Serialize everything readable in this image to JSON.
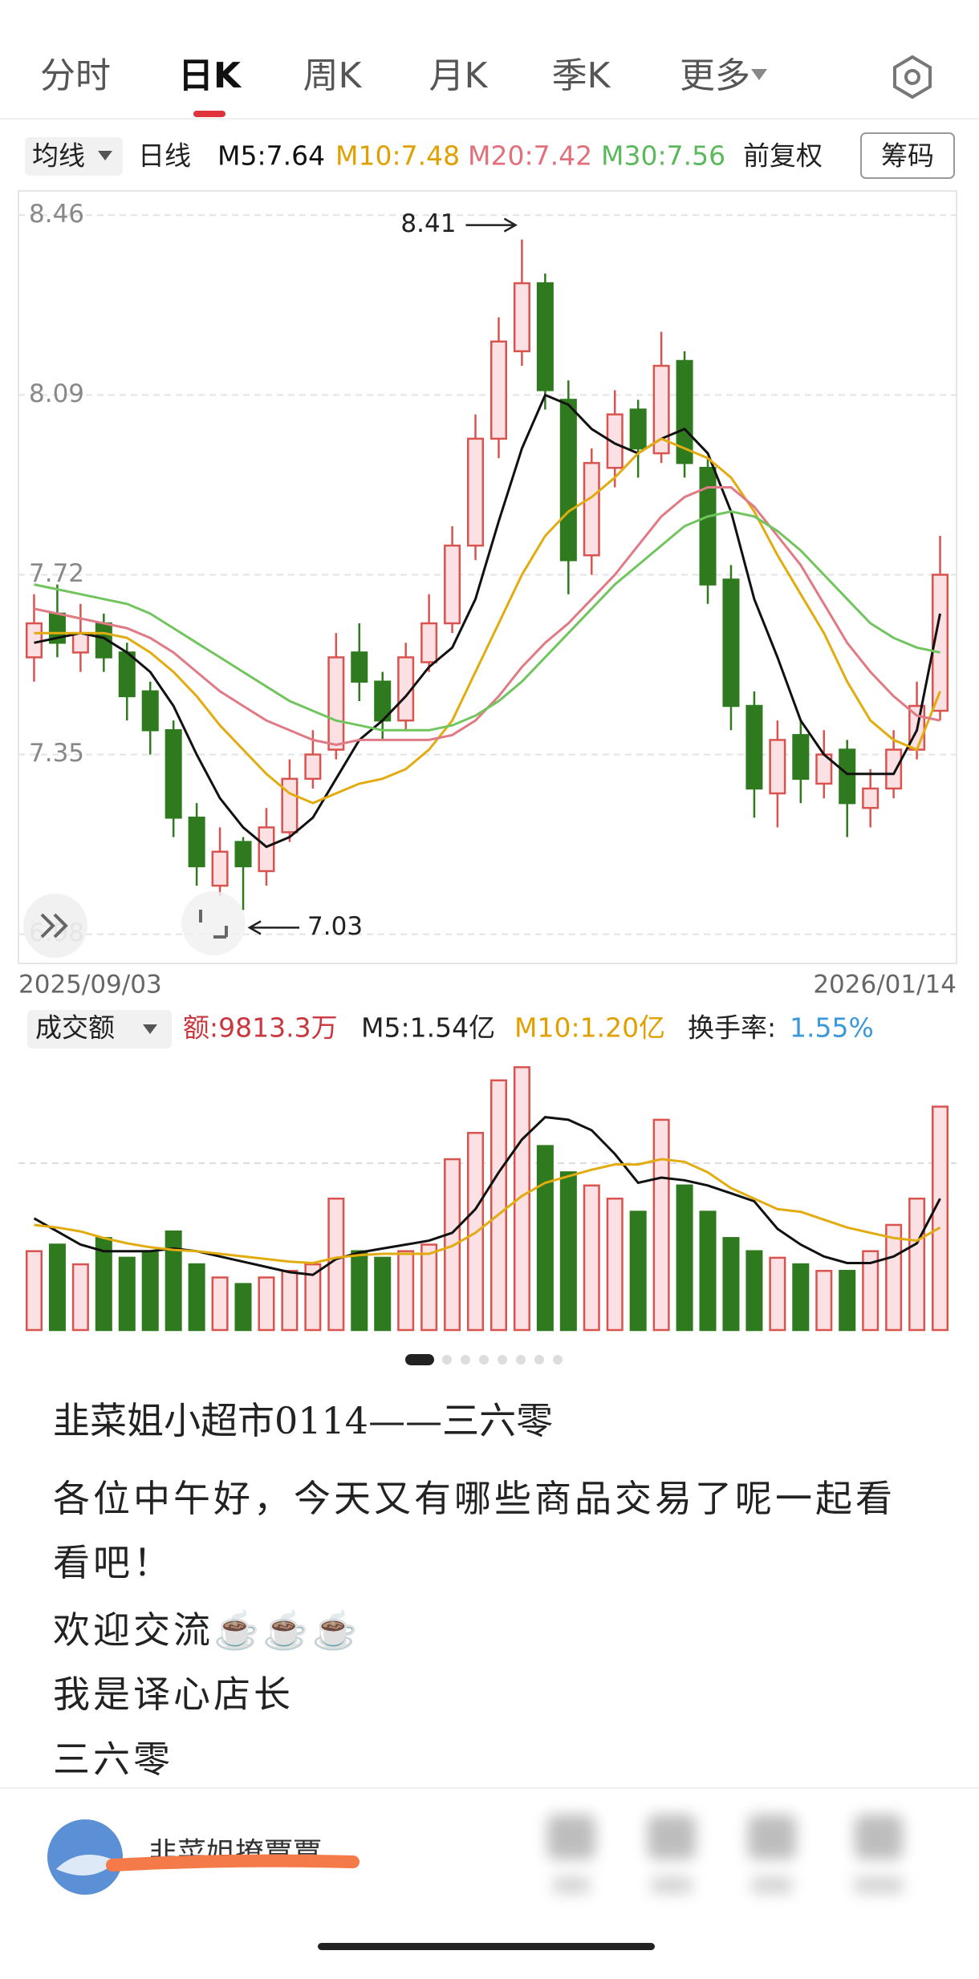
{
  "tabs": {
    "items": [
      "分时",
      "日K",
      "周K",
      "月K",
      "季K",
      "更多"
    ],
    "active": 1
  },
  "toolbar": {
    "ma_button": "均线",
    "period": "日线",
    "adjust": "前复权",
    "chips": "筹码"
  },
  "chart_data": [
    {
      "type": "candlestick",
      "ylim": [
        6.92,
        8.51
      ],
      "yticks": [
        8.46,
        8.09,
        7.72,
        7.35,
        6.98
      ],
      "grid": true,
      "date_range": [
        "2025/09/03",
        "2026/01/14"
      ],
      "up_color": "#d9534f",
      "up_fill": "#fbe1e3",
      "down_color": "#2f7a1e",
      "open": [
        7.55,
        7.64,
        7.56,
        7.62,
        7.56,
        7.48,
        7.4,
        7.22,
        7.08,
        7.17,
        7.11,
        7.19,
        7.3,
        7.36,
        7.56,
        7.5,
        7.42,
        7.54,
        7.62,
        7.78,
        8.0,
        8.18,
        8.32,
        8.08,
        7.76,
        7.94,
        8.06,
        7.97,
        8.16,
        7.94,
        7.71,
        7.45,
        7.27,
        7.39,
        7.29,
        7.36,
        7.24,
        7.28,
        7.36,
        7.44
      ],
      "close": [
        7.62,
        7.58,
        7.6,
        7.55,
        7.47,
        7.4,
        7.22,
        7.12,
        7.15,
        7.12,
        7.2,
        7.3,
        7.35,
        7.55,
        7.5,
        7.42,
        7.55,
        7.62,
        7.78,
        8.0,
        8.2,
        8.32,
        8.1,
        7.75,
        7.95,
        8.05,
        7.98,
        8.15,
        7.95,
        7.7,
        7.45,
        7.28,
        7.38,
        7.3,
        7.35,
        7.25,
        7.28,
        7.36,
        7.45,
        7.72
      ],
      "high": [
        7.68,
        7.7,
        7.66,
        7.64,
        7.58,
        7.5,
        7.42,
        7.25,
        7.2,
        7.18,
        7.24,
        7.34,
        7.4,
        7.6,
        7.62,
        7.52,
        7.58,
        7.68,
        7.82,
        8.05,
        8.25,
        8.41,
        8.34,
        8.12,
        7.98,
        8.1,
        8.08,
        8.22,
        8.18,
        7.96,
        7.74,
        7.48,
        7.42,
        7.42,
        7.4,
        7.38,
        7.32,
        7.4,
        7.5,
        7.8
      ],
      "low": [
        7.5,
        7.55,
        7.52,
        7.52,
        7.42,
        7.35,
        7.18,
        7.08,
        7.06,
        7.03,
        7.08,
        7.17,
        7.28,
        7.34,
        7.46,
        7.38,
        7.4,
        7.52,
        7.6,
        7.75,
        7.96,
        8.15,
        8.06,
        7.68,
        7.72,
        7.9,
        7.92,
        7.95,
        7.92,
        7.66,
        7.4,
        7.22,
        7.2,
        7.25,
        7.26,
        7.18,
        7.2,
        7.26,
        7.34,
        7.42
      ],
      "high_mark": 21,
      "low_mark": 9,
      "series": [
        {
          "label": "M5:7.64",
          "color": "#111111",
          "text_color": "#111111",
          "values": [
            7.58,
            7.59,
            7.6,
            7.59,
            7.56,
            7.52,
            7.45,
            7.35,
            7.26,
            7.2,
            7.16,
            7.18,
            7.22,
            7.3,
            7.38,
            7.42,
            7.47,
            7.53,
            7.57,
            7.67,
            7.83,
            7.98,
            8.09,
            8.07,
            8.02,
            7.99,
            7.97,
            8.0,
            8.02,
            7.97,
            7.85,
            7.67,
            7.55,
            7.42,
            7.35,
            7.31,
            7.31,
            7.31,
            7.4,
            7.64
          ]
        },
        {
          "label": "M10:7.48",
          "color": "#e2ac10",
          "text_color": "#e0a000",
          "values": [
            7.6,
            7.6,
            7.6,
            7.6,
            7.59,
            7.56,
            7.52,
            7.47,
            7.41,
            7.36,
            7.31,
            7.27,
            7.25,
            7.27,
            7.29,
            7.3,
            7.32,
            7.36,
            7.42,
            7.52,
            7.62,
            7.72,
            7.8,
            7.85,
            7.88,
            7.92,
            7.97,
            8.0,
            7.98,
            7.96,
            7.92,
            7.85,
            7.76,
            7.68,
            7.6,
            7.5,
            7.42,
            7.38,
            7.36,
            7.48
          ]
        },
        {
          "label": "M20:7.42",
          "color": "#e07a84",
          "text_color": "#e0707c",
          "values": [
            7.65,
            7.64,
            7.63,
            7.62,
            7.61,
            7.59,
            7.56,
            7.52,
            7.48,
            7.45,
            7.42,
            7.4,
            7.38,
            7.37,
            7.38,
            7.38,
            7.38,
            7.38,
            7.39,
            7.42,
            7.47,
            7.53,
            7.58,
            7.62,
            7.67,
            7.72,
            7.78,
            7.84,
            7.88,
            7.9,
            7.9,
            7.86,
            7.8,
            7.74,
            7.66,
            7.58,
            7.52,
            7.47,
            7.43,
            7.42
          ]
        },
        {
          "label": "M30:7.56",
          "color": "#72c45e",
          "text_color": "#5cb85c",
          "values": [
            7.7,
            7.69,
            7.68,
            7.67,
            7.66,
            7.64,
            7.61,
            7.58,
            7.55,
            7.52,
            7.49,
            7.46,
            7.44,
            7.42,
            7.41,
            7.4,
            7.4,
            7.4,
            7.41,
            7.43,
            7.46,
            7.5,
            7.55,
            7.6,
            7.65,
            7.7,
            7.74,
            7.78,
            7.82,
            7.84,
            7.85,
            7.84,
            7.81,
            7.77,
            7.72,
            7.67,
            7.62,
            7.59,
            7.57,
            7.56
          ]
        }
      ]
    },
    {
      "type": "bar",
      "ylim": [
        0,
        2.1
      ],
      "title": "成交额",
      "amount_label": "额:9813.3万",
      "turnover_label": "换手率:",
      "turnover_value": "1.55%",
      "values": [
        0.6,
        0.65,
        0.5,
        0.7,
        0.55,
        0.6,
        0.75,
        0.5,
        0.4,
        0.35,
        0.4,
        0.45,
        0.5,
        1.0,
        0.6,
        0.55,
        0.6,
        0.65,
        1.3,
        1.5,
        1.9,
        2.0,
        1.4,
        1.2,
        1.1,
        1.0,
        0.9,
        1.6,
        1.1,
        0.9,
        0.7,
        0.6,
        0.55,
        0.5,
        0.45,
        0.45,
        0.6,
        0.8,
        1.0,
        1.7
      ],
      "series": [
        {
          "label": "M5:1.54亿",
          "color": "#111111",
          "text_color": "#222222",
          "values": [
            0.85,
            0.75,
            0.65,
            0.6,
            0.6,
            0.6,
            0.62,
            0.6,
            0.56,
            0.52,
            0.48,
            0.44,
            0.42,
            0.54,
            0.59,
            0.62,
            0.65,
            0.68,
            0.74,
            0.92,
            1.2,
            1.45,
            1.62,
            1.6,
            1.52,
            1.34,
            1.12,
            1.16,
            1.14,
            1.1,
            1.04,
            0.98,
            0.77,
            0.65,
            0.56,
            0.51,
            0.51,
            0.56,
            0.66,
            1.0
          ]
        },
        {
          "label": "M10:1.20亿",
          "color": "#e2ac10",
          "text_color": "#e0a000",
          "values": [
            0.8,
            0.78,
            0.75,
            0.7,
            0.66,
            0.63,
            0.61,
            0.6,
            0.58,
            0.56,
            0.54,
            0.52,
            0.51,
            0.55,
            0.57,
            0.58,
            0.58,
            0.58,
            0.64,
            0.74,
            0.88,
            1.02,
            1.12,
            1.17,
            1.22,
            1.26,
            1.26,
            1.3,
            1.28,
            1.2,
            1.08,
            1.0,
            0.92,
            0.9,
            0.84,
            0.78,
            0.74,
            0.7,
            0.68,
            0.78
          ]
        }
      ]
    }
  ],
  "post": {
    "title": "韭菜姐小超市0114——三六零",
    "lines": [
      "各位中午好，今天又有哪些商品交易了呢一起看",
      "看吧！",
      "欢迎交流☕☕☕",
      "我是译心店长",
      "三六零"
    ],
    "author": "韭菜姐撩覃覃"
  }
}
